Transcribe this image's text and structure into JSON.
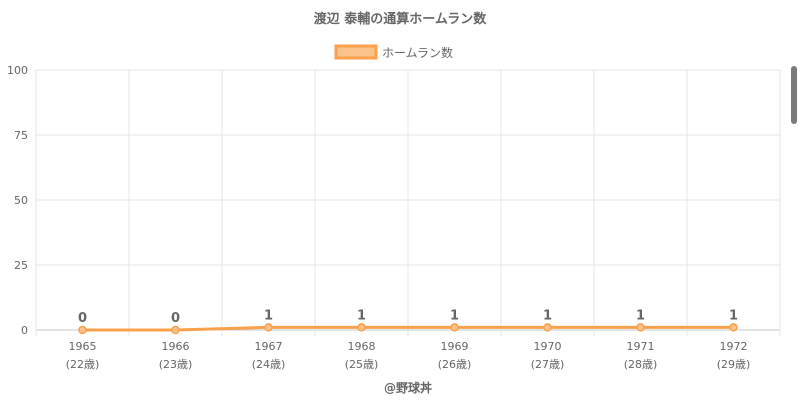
{
  "chart_data": {
    "type": "line",
    "title": "渡辺 泰輔の通算ホームラン数",
    "x": [
      "1965",
      "1966",
      "1967",
      "1968",
      "1969",
      "1970",
      "1971",
      "1972"
    ],
    "x_sublabels": [
      "(22歳)",
      "(23歳)",
      "(24歳)",
      "(25歳)",
      "(26歳)",
      "(27歳)",
      "(28歳)",
      "(29歳)"
    ],
    "series": [
      {
        "name": "ホームラン数",
        "values": [
          0,
          0,
          1,
          1,
          1,
          1,
          1,
          1
        ],
        "color": "#f9a04b"
      }
    ],
    "ylim": [
      0,
      100
    ],
    "yticks": [
      0,
      25,
      50,
      75,
      100
    ],
    "grid": true,
    "legend": "top-center",
    "data_labels": true
  },
  "credit": "@野球丼"
}
